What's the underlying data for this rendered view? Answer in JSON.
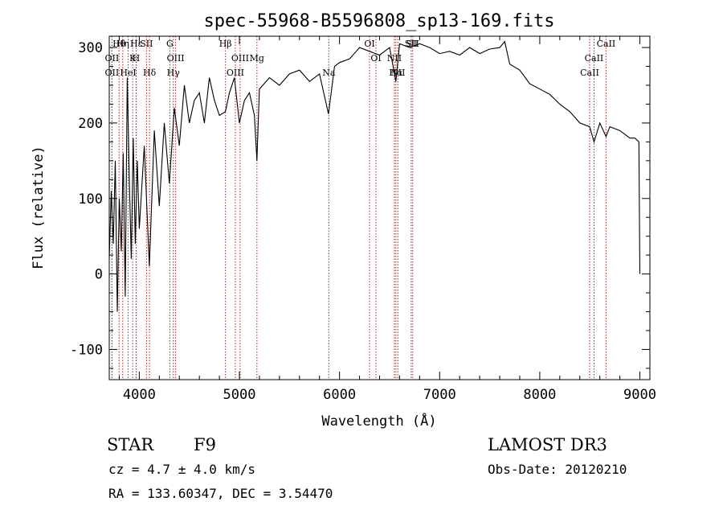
{
  "chart_data": {
    "type": "line",
    "title": "spec-55968-B5596808_sp13-169.fits",
    "xlabel": "Wavelength (Å)",
    "ylabel": "Flux (relative)",
    "xlim": [
      3700,
      9100
    ],
    "ylim": [
      -140,
      315
    ],
    "xticks": [
      4000,
      5000,
      6000,
      7000,
      8000,
      9000
    ],
    "yticks": [
      -100,
      0,
      100,
      200,
      300
    ],
    "series": [
      {
        "name": "flux",
        "x": [
          3700,
          3720,
          3740,
          3760,
          3780,
          3800,
          3820,
          3840,
          3860,
          3880,
          3900,
          3920,
          3940,
          3960,
          3980,
          4000,
          4050,
          4100,
          4150,
          4200,
          4250,
          4300,
          4350,
          4400,
          4450,
          4500,
          4550,
          4600,
          4650,
          4700,
          4750,
          4800,
          4860,
          4900,
          4950,
          5000,
          5050,
          5100,
          5150,
          5175,
          5200,
          5300,
          5400,
          5500,
          5600,
          5700,
          5800,
          5890,
          5950,
          6000,
          6100,
          6200,
          6300,
          6400,
          6500,
          6563,
          6600,
          6700,
          6800,
          6900,
          7000,
          7100,
          7200,
          7300,
          7400,
          7500,
          7600,
          7650,
          7700,
          7800,
          7900,
          8000,
          8100,
          8200,
          8300,
          8400,
          8498,
          8542,
          8600,
          8662,
          8700,
          8800,
          8900,
          8950,
          8990,
          9000
        ],
        "y": [
          20,
          110,
          40,
          150,
          -50,
          100,
          30,
          160,
          -30,
          260,
          130,
          20,
          180,
          40,
          150,
          60,
          170,
          10,
          190,
          90,
          200,
          120,
          220,
          170,
          250,
          200,
          230,
          240,
          200,
          260,
          230,
          210,
          215,
          240,
          260,
          200,
          230,
          240,
          210,
          150,
          245,
          260,
          250,
          265,
          270,
          255,
          265,
          212,
          275,
          280,
          285,
          300,
          295,
          290,
          300,
          255,
          305,
          300,
          305,
          300,
          292,
          295,
          290,
          300,
          292,
          298,
          300,
          308,
          278,
          270,
          252,
          245,
          238,
          225,
          215,
          200,
          195,
          175,
          200,
          182,
          195,
          190,
          180,
          180,
          175,
          0
        ]
      }
    ],
    "spectral_lines": [
      {
        "label": "Hθ",
        "wave": 3798
      },
      {
        "label": "OII",
        "wave": 3727
      },
      {
        "label": "OII",
        "wave": 3727
      },
      {
        "label": "Hη",
        "wave": 3835
      },
      {
        "label": "K",
        "wave": 3934
      },
      {
        "label": "HeI",
        "wave": 3889
      },
      {
        "label": "Hε",
        "wave": 3970
      },
      {
        "label": "H",
        "wave": 3968
      },
      {
        "label": "Hδ",
        "wave": 4102
      },
      {
        "label": "SII",
        "wave": 4072
      },
      {
        "label": "OIII",
        "wave": 4363
      },
      {
        "label": "Hγ",
        "wave": 4340
      },
      {
        "label": "G",
        "wave": 4305
      },
      {
        "label": "OIII",
        "wave": 5007
      },
      {
        "label": "OIII",
        "wave": 4959
      },
      {
        "label": "Hβ",
        "wave": 4861
      },
      {
        "label": "Mg",
        "wave": 5175
      },
      {
        "label": "Na",
        "wave": 5893
      },
      {
        "label": "OI",
        "wave": 6300
      },
      {
        "label": "OI",
        "wave": 6364
      },
      {
        "label": "Hα",
        "wave": 6563
      },
      {
        "label": "SII",
        "wave": 6716
      },
      {
        "label": "NII",
        "wave": 6548
      },
      {
        "label": "NII",
        "wave": 6583
      },
      {
        "label": "SII",
        "wave": 6731
      },
      {
        "label": "CaII",
        "wave": 8542
      },
      {
        "label": "CaII",
        "wave": 8498
      },
      {
        "label": "CaII",
        "wave": 8662
      }
    ]
  },
  "info": {
    "object_class": "STAR",
    "subclass": "F9",
    "survey": "LAMOST DR3",
    "cz": "cz = 4.7 ± 4.0 km/s",
    "obs_date": "Obs-Date: 20120210",
    "coords": "RA = 133.60347, DEC =   3.54470"
  },
  "colors": {
    "spectrum": "#000000",
    "line_marker": "#b22222"
  }
}
